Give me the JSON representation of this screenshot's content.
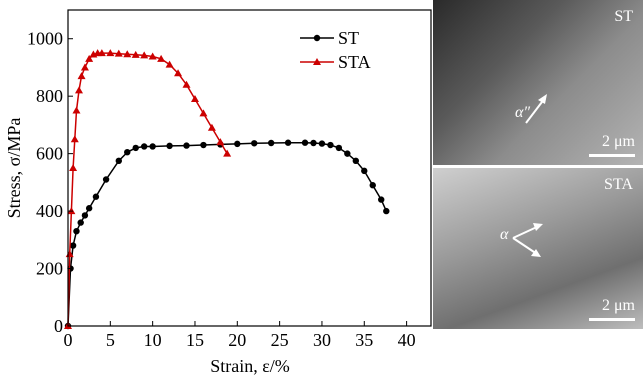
{
  "chart_data": {
    "type": "line",
    "xlabel": "Strain, ε/%",
    "ylabel": "Stress, σ/MPa",
    "xlim": [
      0,
      43
    ],
    "ylim": [
      0,
      1100
    ],
    "xticks": [
      "0",
      "5",
      "10",
      "15",
      "20",
      "25",
      "30",
      "35",
      "40"
    ],
    "yticks": [
      "0",
      "200",
      "400",
      "600",
      "800",
      "1000"
    ],
    "legend_position": "top-right",
    "series": [
      {
        "name": "ST",
        "color": "#000000",
        "marker": "circle",
        "points": [
          [
            0,
            0
          ],
          [
            0.3,
            200
          ],
          [
            0.6,
            280
          ],
          [
            1,
            330
          ],
          [
            1.5,
            360
          ],
          [
            2,
            385
          ],
          [
            2.5,
            410
          ],
          [
            3.3,
            450
          ],
          [
            4.5,
            510
          ],
          [
            6,
            575
          ],
          [
            7,
            605
          ],
          [
            8,
            620
          ],
          [
            9,
            625
          ],
          [
            10,
            625
          ],
          [
            12,
            627
          ],
          [
            14,
            628
          ],
          [
            16,
            630
          ],
          [
            18,
            632
          ],
          [
            20,
            634
          ],
          [
            22,
            636
          ],
          [
            24,
            637
          ],
          [
            26,
            638
          ],
          [
            28,
            638
          ],
          [
            29,
            637
          ],
          [
            30,
            635
          ],
          [
            31,
            630
          ],
          [
            32,
            620
          ],
          [
            33,
            600
          ],
          [
            34,
            575
          ],
          [
            35,
            540
          ],
          [
            36,
            490
          ],
          [
            37,
            440
          ],
          [
            37.6,
            400
          ]
        ]
      },
      {
        "name": "STA",
        "color": "#cc0000",
        "marker": "triangle",
        "points": [
          [
            0,
            0
          ],
          [
            0.2,
            250
          ],
          [
            0.4,
            400
          ],
          [
            0.6,
            550
          ],
          [
            0.8,
            650
          ],
          [
            1,
            750
          ],
          [
            1.3,
            820
          ],
          [
            1.6,
            870
          ],
          [
            2,
            900
          ],
          [
            2.5,
            930
          ],
          [
            3,
            945
          ],
          [
            3.5,
            950
          ],
          [
            4,
            950
          ],
          [
            5,
            950
          ],
          [
            6,
            948
          ],
          [
            7,
            946
          ],
          [
            8,
            944
          ],
          [
            9,
            942
          ],
          [
            10,
            938
          ],
          [
            11,
            930
          ],
          [
            12,
            910
          ],
          [
            13,
            880
          ],
          [
            14,
            840
          ],
          [
            15,
            790
          ],
          [
            16,
            740
          ],
          [
            17,
            690
          ],
          [
            18,
            640
          ],
          [
            18.8,
            600
          ]
        ]
      }
    ]
  },
  "micrographs": {
    "top": {
      "panel_label": "ST",
      "phase_label": "α″",
      "scale_label": "2 μm"
    },
    "bottom": {
      "panel_label": "STA",
      "phase_label": "α",
      "scale_label": "2 μm"
    }
  }
}
